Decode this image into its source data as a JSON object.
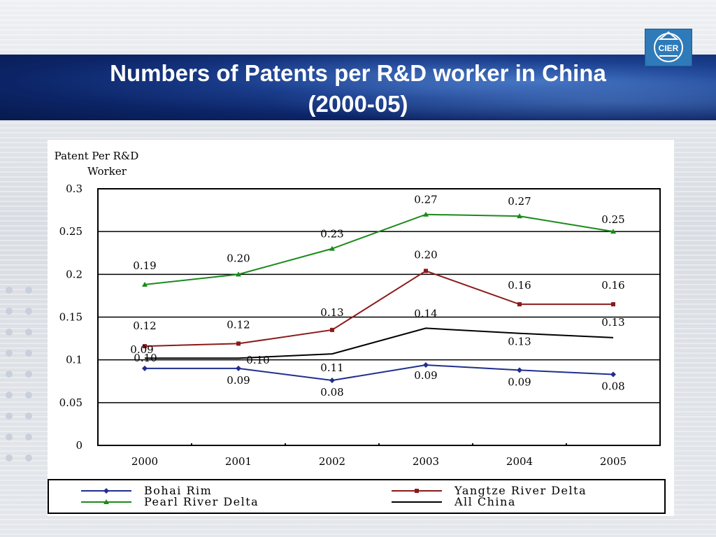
{
  "slide": {
    "title_line1": "Numbers of Patents per R&D worker in China",
    "title_line2": "(2000-05)",
    "logo_text": "CIER"
  },
  "chart_data": {
    "type": "line",
    "ylabel_line1": "Patent Per R&D",
    "ylabel_line2": "Worker",
    "categories": [
      "2000",
      "2001",
      "2002",
      "2003",
      "2004",
      "2005"
    ],
    "ylim": [
      0,
      0.3
    ],
    "yticks": [
      "0",
      "0.05",
      "0.1",
      "0.15",
      "0.2",
      "0.25",
      "0.3"
    ],
    "grid": true,
    "legend_position": "bottom",
    "series": [
      {
        "name": "Bohai Rim",
        "color": "#1f2f8f",
        "marker": "diamond",
        "values": [
          0.09,
          0.09,
          0.076,
          0.094,
          0.088,
          0.083
        ],
        "labels": [
          "0.09",
          "0.09",
          "0.08",
          "0.09",
          "0.09",
          "0.08"
        ]
      },
      {
        "name": "Yangtze River Delta",
        "color": "#8b1a1a",
        "marker": "square",
        "values": [
          0.116,
          0.119,
          0.135,
          0.204,
          0.165,
          0.165
        ],
        "labels": [
          "0.12",
          "0.12",
          "0.13",
          "0.20",
          "0.16",
          "0.16"
        ]
      },
      {
        "name": "Pearl River Delta",
        "color": "#1a8a1a",
        "marker": "triangle",
        "values": [
          0.188,
          0.2,
          0.23,
          0.27,
          0.268,
          0.25
        ],
        "labels": [
          "0.19",
          "0.20",
          "0.23",
          "0.27",
          "0.27",
          "0.25"
        ]
      },
      {
        "name": "All China",
        "color": "#000000",
        "marker": "none",
        "values": [
          0.102,
          0.102,
          0.107,
          0.137,
          0.131,
          0.126
        ],
        "labels": [
          "0.10",
          "0.10",
          "0.11",
          "0.14",
          "0.13",
          "0.13"
        ]
      }
    ]
  }
}
